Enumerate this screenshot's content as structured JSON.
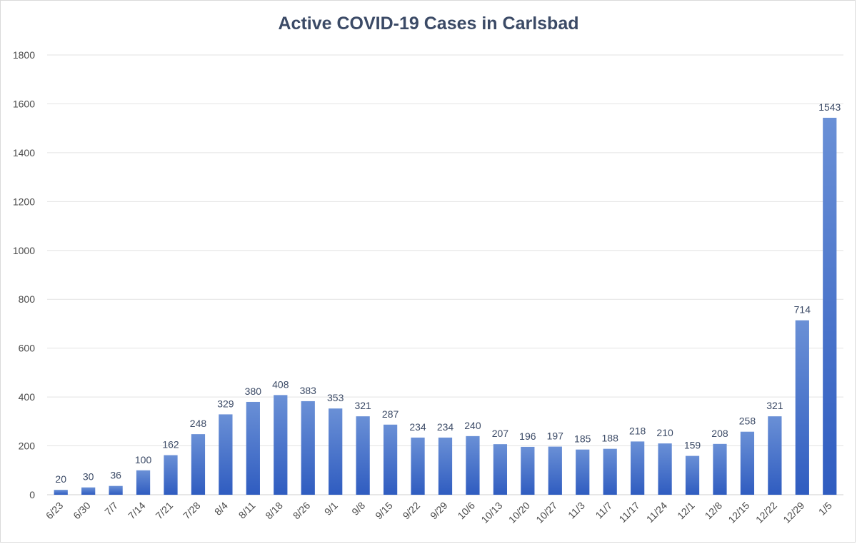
{
  "chart_data": {
    "type": "bar",
    "title": "Active COVID-19 Cases in Carlsbad",
    "xlabel": "",
    "ylabel": "",
    "ylim": [
      0,
      1800
    ],
    "yticks": [
      0,
      200,
      400,
      600,
      800,
      1000,
      1200,
      1400,
      1600,
      1800
    ],
    "grid": true,
    "legend": "none",
    "bar_color": "#4472c4",
    "categories": [
      "6/23",
      "6/30",
      "7/7",
      "7/14",
      "7/21",
      "7/28",
      "8/4",
      "8/11",
      "8/18",
      "8/26",
      "9/1",
      "9/8",
      "9/15",
      "9/22",
      "9/29",
      "10/6",
      "10/13",
      "10/20",
      "10/27",
      "11/3",
      "11/7",
      "11/17",
      "11/24",
      "12/1",
      "12/8",
      "12/15",
      "12/22",
      "12/29",
      "1/5"
    ],
    "values": [
      20,
      30,
      36,
      100,
      162,
      248,
      329,
      380,
      408,
      383,
      353,
      321,
      287,
      234,
      234,
      240,
      207,
      196,
      197,
      185,
      188,
      218,
      210,
      159,
      208,
      258,
      321,
      714,
      1543
    ]
  }
}
